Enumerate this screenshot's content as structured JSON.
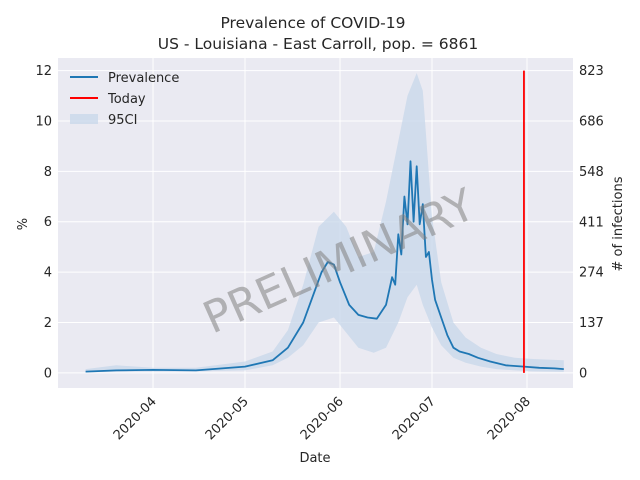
{
  "chart_data": {
    "type": "line",
    "title": "Prevalence of COVID-19",
    "subtitle": "US - Louisiana - East Carroll, pop. = 6861",
    "xlabel": "Date",
    "ylabel": "%",
    "y2label": "# of infections",
    "xlim": [
      "2020-03-01",
      "2020-08-16"
    ],
    "ylim": [
      -0.6,
      12.5
    ],
    "x_ticks": [
      "2020-04",
      "2020-05",
      "2020-06",
      "2020-07",
      "2020-08"
    ],
    "y_ticks": [
      "0",
      "2",
      "4",
      "6",
      "8",
      "10",
      "12"
    ],
    "y2_ticks": [
      "0",
      "137",
      "274",
      "411",
      "548",
      "686",
      "823"
    ],
    "grid": true,
    "legend": {
      "position": "top-left",
      "entries": [
        "Prevalence",
        "Today",
        "95CI"
      ]
    },
    "watermark": "PRELIMINARY",
    "colors": {
      "prevalence": "#1f77b4",
      "today": "#ff0000",
      "ci": "#c7d7ea",
      "background": "#eaeaf2"
    },
    "today": "2020-07-31",
    "series": [
      {
        "name": "Prevalence",
        "x": [
          "2020-03-10",
          "2020-03-20",
          "2020-04-01",
          "2020-04-15",
          "2020-05-01",
          "2020-05-10",
          "2020-05-15",
          "2020-05-20",
          "2020-05-23",
          "2020-05-26",
          "2020-05-28",
          "2020-05-30",
          "2020-06-01",
          "2020-06-04",
          "2020-06-07",
          "2020-06-10",
          "2020-06-13",
          "2020-06-16",
          "2020-06-18",
          "2020-06-19",
          "2020-06-20",
          "2020-06-21",
          "2020-06-22",
          "2020-06-23",
          "2020-06-24",
          "2020-06-25",
          "2020-06-26",
          "2020-06-27",
          "2020-06-28",
          "2020-06-29",
          "2020-06-30",
          "2020-07-01",
          "2020-07-02",
          "2020-07-04",
          "2020-07-06",
          "2020-07-08",
          "2020-07-10",
          "2020-07-13",
          "2020-07-16",
          "2020-07-20",
          "2020-07-25",
          "2020-07-31",
          "2020-08-05",
          "2020-08-10",
          "2020-08-13"
        ],
        "y": [
          0.05,
          0.1,
          0.12,
          0.1,
          0.25,
          0.5,
          1.0,
          2.0,
          3.0,
          4.0,
          4.4,
          4.3,
          3.6,
          2.7,
          2.3,
          2.2,
          2.15,
          2.7,
          3.8,
          3.5,
          5.5,
          4.7,
          7.0,
          5.9,
          8.4,
          6.0,
          8.2,
          5.9,
          6.7,
          4.6,
          4.8,
          3.7,
          2.9,
          2.2,
          1.5,
          1.0,
          0.85,
          0.75,
          0.6,
          0.45,
          0.3,
          0.25,
          0.2,
          0.18,
          0.15
        ]
      },
      {
        "name": "95CI",
        "x": [
          "2020-03-10",
          "2020-03-20",
          "2020-04-01",
          "2020-04-15",
          "2020-05-01",
          "2020-05-10",
          "2020-05-15",
          "2020-05-20",
          "2020-05-25",
          "2020-05-30",
          "2020-06-03",
          "2020-06-07",
          "2020-06-12",
          "2020-06-16",
          "2020-06-20",
          "2020-06-23",
          "2020-06-26",
          "2020-06-28",
          "2020-07-01",
          "2020-07-04",
          "2020-07-08",
          "2020-07-12",
          "2020-07-17",
          "2020-07-22",
          "2020-07-28",
          "2020-08-03",
          "2020-08-13"
        ],
        "lower": [
          0.02,
          0.05,
          0.06,
          0.06,
          0.1,
          0.3,
          0.6,
          1.1,
          2.0,
          2.2,
          1.6,
          1.0,
          0.8,
          1.0,
          2.0,
          3.0,
          3.5,
          2.7,
          1.8,
          1.1,
          0.6,
          0.4,
          0.25,
          0.15,
          0.1,
          0.06,
          0.04
        ],
        "upper": [
          0.15,
          0.3,
          0.2,
          0.2,
          0.45,
          0.85,
          1.7,
          3.5,
          5.8,
          6.4,
          5.8,
          4.6,
          4.8,
          6.8,
          9.2,
          11.0,
          11.9,
          11.2,
          6.2,
          3.6,
          2.0,
          1.4,
          1.0,
          0.75,
          0.6,
          0.55,
          0.5
        ]
      }
    ]
  }
}
